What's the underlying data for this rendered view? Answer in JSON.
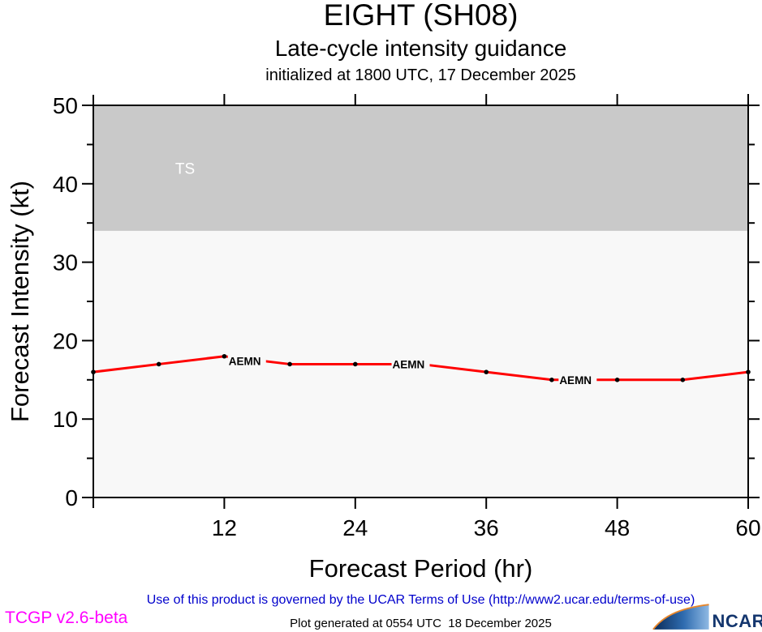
{
  "header": {
    "title": "EIGHT (SH08)",
    "subtitle": "Late-cycle intensity guidance",
    "init_line": "initialized at 1800 UTC, 17 December 2025"
  },
  "chart_data": {
    "type": "line",
    "title": "EIGHT (SH08) Late-cycle intensity guidance",
    "xlabel": "Forecast Period (hr)",
    "ylabel": "Forecast Intensity (kt)",
    "xlim": [
      0,
      60
    ],
    "ylim": [
      0,
      50
    ],
    "xticks_major": [
      12,
      24,
      36,
      48,
      60
    ],
    "yticks_major": [
      0,
      10,
      20,
      30,
      40,
      50
    ],
    "yticks_minor": [
      5,
      15,
      25,
      35,
      45
    ],
    "grid": "off",
    "plot_bg_color": "#f8f8f8",
    "band": {
      "min": 34,
      "max": 50,
      "label": "TS",
      "color": "#c9c9c9",
      "label_color": "#ffffff",
      "label_hour": 7.5,
      "label_kt": 42
    },
    "x": [
      0,
      6,
      12,
      18,
      24,
      30,
      36,
      42,
      48,
      54,
      60
    ],
    "series": [
      {
        "name": "AEMN",
        "color": "#ff0000",
        "marker_color": "#000000",
        "values": [
          16,
          17,
          18,
          17,
          17,
          17,
          16,
          15,
          15,
          15,
          16
        ]
      }
    ],
    "line_labels": [
      {
        "text": "AEMN",
        "hour": 12.4,
        "kt": 17.4
      },
      {
        "text": "AEMN",
        "hour": 27.4,
        "kt": 17.0
      },
      {
        "text": "AEMN",
        "hour": 42.7,
        "kt": 15.0
      }
    ]
  },
  "footer": {
    "terms": "Use of this product is governed by the UCAR Terms of Use (http://www2.ucar.edu/terms-of-use)",
    "terms_color": "#0000cc",
    "version": "TCGP v2.6-beta",
    "version_color": "#ff00ff",
    "generated": "Plot generated at 0554 UTC  18 December 2025",
    "ncar": "NCAR",
    "ncar_color": "#14366e"
  }
}
